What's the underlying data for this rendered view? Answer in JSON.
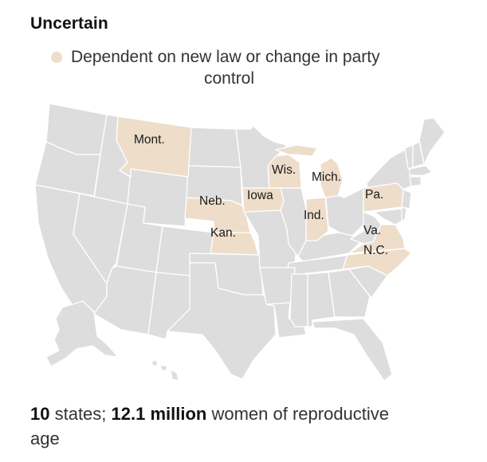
{
  "heading": "Uncertain",
  "legend": {
    "line1": "Dependent on new law or change in party",
    "line2": "control",
    "swatch_color": "#eeddc9"
  },
  "map": {
    "base_color": "#dddddd",
    "border_color": "#ffffff",
    "highlight_color": "#eeddc9",
    "highlighted_states": [
      {
        "key": "montana",
        "label": "Mont."
      },
      {
        "key": "nebraska",
        "label": "Neb."
      },
      {
        "key": "kansas",
        "label": "Kan."
      },
      {
        "key": "iowa",
        "label": "Iowa"
      },
      {
        "key": "wisconsin",
        "label": "Wis."
      },
      {
        "key": "michigan",
        "label": "Mich."
      },
      {
        "key": "indiana",
        "label": "Ind."
      },
      {
        "key": "pennsylvania",
        "label": "Pa."
      },
      {
        "key": "virginia",
        "label": "Va."
      },
      {
        "key": "north_carolina",
        "label": "N.C."
      }
    ]
  },
  "summary": {
    "count": "10",
    "count_suffix": " states; ",
    "population": "12.1 million",
    "population_suffix": " women of reproductive",
    "line2": "age"
  }
}
